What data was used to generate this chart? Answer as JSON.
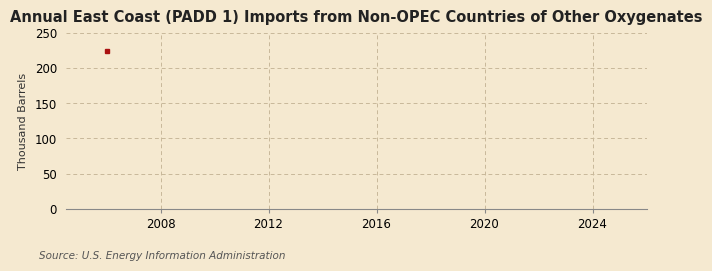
{
  "title": "Annual East Coast (PADD 1) Imports from Non-OPEC Countries of Other Oxygenates",
  "ylabel": "Thousand Barrels",
  "source_text": "Source: U.S. Energy Information Administration",
  "background_color": "#f5e9d0",
  "plot_bg_color": "#f5e9d0",
  "data_x": [
    2006
  ],
  "data_y": [
    224
  ],
  "marker_color": "#aa1111",
  "marker_size": 3.5,
  "xlim": [
    2004.5,
    2026
  ],
  "ylim": [
    0,
    250
  ],
  "xticks": [
    2008,
    2012,
    2016,
    2020,
    2024
  ],
  "yticks": [
    0,
    50,
    100,
    150,
    200,
    250
  ],
  "grid_color": "#c8b89a",
  "title_fontsize": 10.5,
  "label_fontsize": 8,
  "tick_fontsize": 8.5,
  "source_fontsize": 7.5
}
